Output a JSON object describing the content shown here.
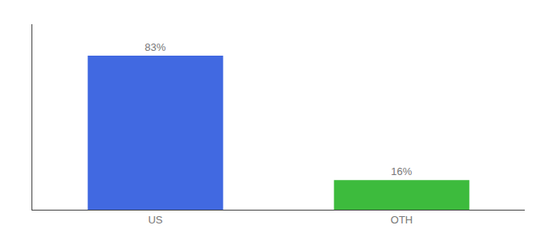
{
  "chart_data": {
    "type": "bar",
    "categories": [
      "US",
      "OTH"
    ],
    "values": [
      83,
      16
    ],
    "value_labels": [
      "83%",
      "16%"
    ],
    "colors": [
      "#4169e1",
      "#3dbb3d"
    ],
    "ylim": [
      0,
      100
    ],
    "data_labels": true,
    "tick_labels": "x",
    "grid": false
  }
}
